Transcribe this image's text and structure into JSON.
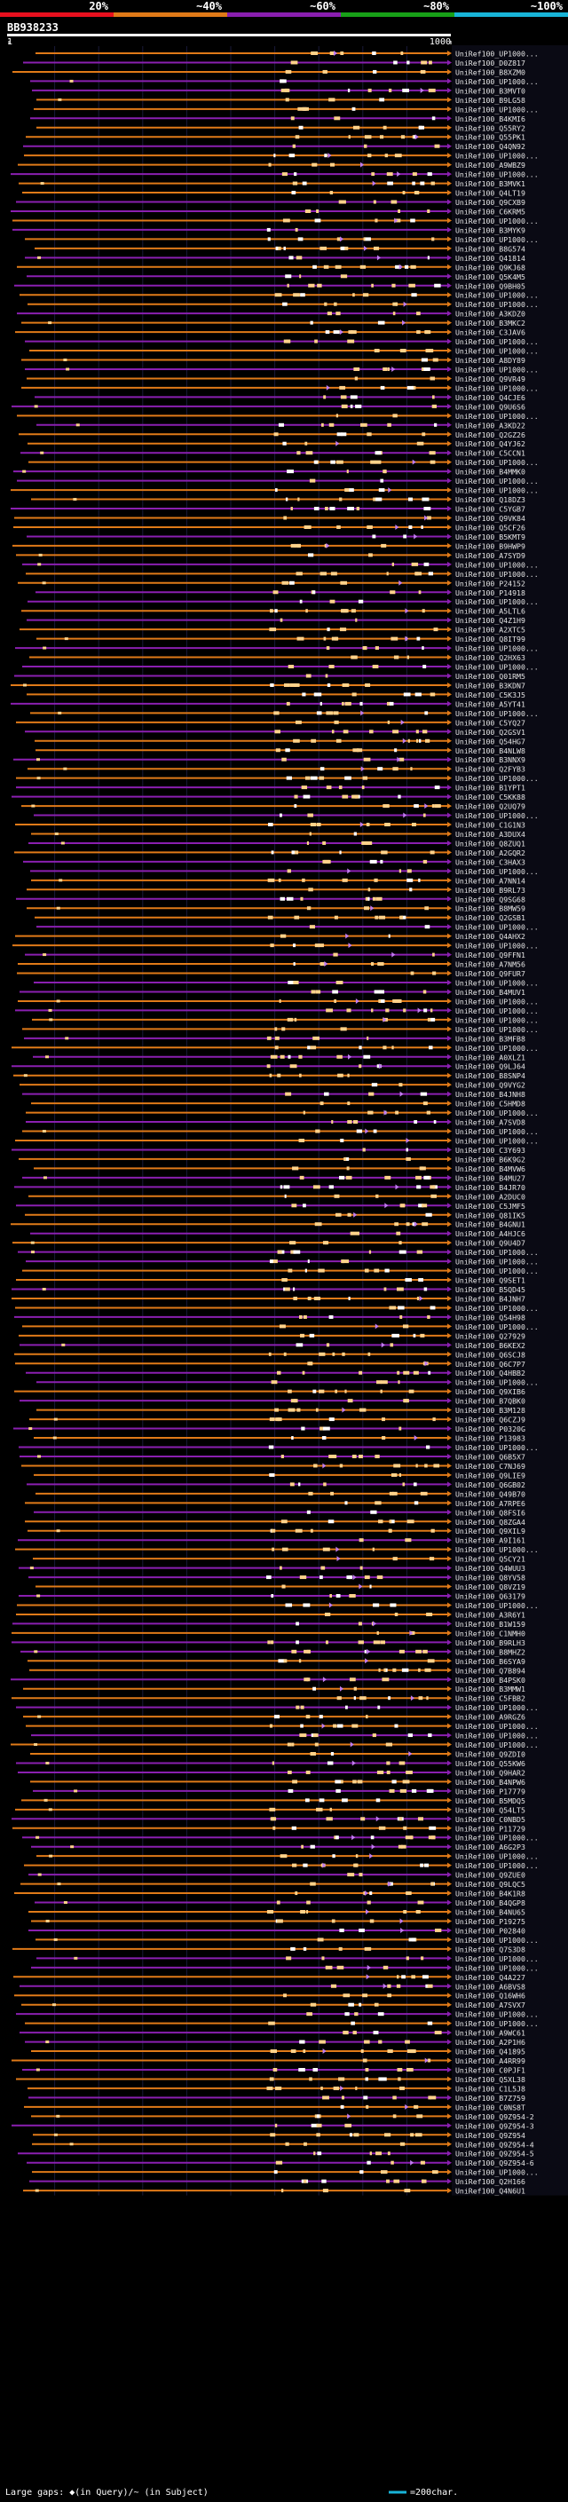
{
  "chart_data": {
    "type": "alignment-overview",
    "title": "BB938233",
    "query_length": 1000,
    "axis": {
      "start_label": "1",
      "end_label": "1000"
    },
    "legend": {
      "color_scale": [
        {
          "label": "20%",
          "color": "#e8101e"
        },
        {
          "label": "~40%",
          "color": "#e07a18"
        },
        {
          "label": "~60%",
          "color": "#8a1fb0"
        },
        {
          "label": "~80%",
          "color": "#18a018"
        },
        {
          "label": "~100%",
          "color": "#18b4d8"
        }
      ],
      "footer_gap_text": "Large gaps: ◆(in Query)/~ (in Subject)",
      "footer_scale_text": "=200char."
    },
    "hits": [
      "UniRef100_UP1000...",
      "UniRef100_D0Z817",
      "UniRef100_B8XZM0",
      "UniRef100_UP1000...",
      "UniRef100_B3MVT0",
      "UniRef100_B9LG58",
      "UniRef100_UP1000...",
      "UniRef100_B4KMI6",
      "UniRef100_Q55RY2",
      "UniRef100_Q55PK1",
      "UniRef100_Q4QN92",
      "UniRef100_UP1000...",
      "UniRef100_A9WBZ9",
      "UniRef100_UP1000...",
      "UniRef100_B3MVK1",
      "UniRef100_Q4LT19",
      "UniRef100_Q9CXB9",
      "UniRef100_C6KRM5",
      "UniRef100_UP1000...",
      "UniRef100_B3MYK9",
      "UniRef100_UP1000...",
      "UniRef100_B8G574",
      "UniRef100_Q41814",
      "UniRef100_Q9KJ68",
      "UniRef100_Q5K4M5",
      "UniRef100_Q9BH05",
      "UniRef100_UP1000...",
      "UniRef100_UP1000...",
      "UniRef100_A3KDZ0",
      "UniRef100_B3MKC2",
      "UniRef100_C3JAV6",
      "UniRef100_UP1000...",
      "UniRef100_UP1000...",
      "UniRef100_A8DY89",
      "UniRef100_UP1000...",
      "UniRef100_Q9VR49",
      "UniRef100_UP1000...",
      "UniRef100_Q4CJE6",
      "UniRef100_Q9U6S6",
      "UniRef100_UP1000...",
      "UniRef100_A3KD22",
      "UniRef100_Q2GZ26",
      "UniRef100_Q4YJ62",
      "UniRef100_C5CCN1",
      "UniRef100_UP1000...",
      "UniRef100_B4MMK0",
      "UniRef100_UP1000...",
      "UniRef100_UP1000...",
      "UniRef100_Q18DZ3",
      "UniRef100_C5YGB7",
      "UniRef100_Q9VK84",
      "UniRef100_Q5CF26",
      "UniRef100_B5KMT9",
      "UniRef100_B9HWP9",
      "UniRef100_A7SYD9",
      "UniRef100_UP1000...",
      "UniRef100_UP1000...",
      "UniRef100_P24152",
      "UniRef100_P14918",
      "UniRef100_UP1000...",
      "UniRef100_A5LTL6",
      "UniRef100_Q4Z1H9",
      "UniRef100_A2XTC5",
      "UniRef100_Q8IT99",
      "UniRef100_UP1000...",
      "UniRef100_Q2HX63",
      "UniRef100_UP1000...",
      "UniRef100_Q01RM5",
      "UniRef100_B3KDN7",
      "UniRef100_C5K3J5",
      "UniRef100_A5YT41",
      "UniRef100_UP1000...",
      "UniRef100_C5YQ27",
      "UniRef100_Q2GSV1",
      "UniRef100_Q54HG7",
      "UniRef100_B4NLW8",
      "UniRef100_B3NNX9",
      "UniRef100_Q2FYB3",
      "UniRef100_UP1000...",
      "UniRef100_B1YPT1",
      "UniRef100_C5KK88",
      "UniRef100_Q2UQ79",
      "UniRef100_UP1000...",
      "UniRef100_C1G1N3",
      "UniRef100_A3DUX4",
      "UniRef100_Q8ZUQ1",
      "UniRef100_A2GQR2",
      "UniRef100_C3HAX3",
      "UniRef100_UP1000...",
      "UniRef100_A7NN14",
      "UniRef100_B9RL73",
      "UniRef100_Q9SG68",
      "UniRef100_B8MW59",
      "UniRef100_Q2GSB1",
      "UniRef100_UP1000...",
      "UniRef100_Q4AHX2",
      "UniRef100_UP1000...",
      "UniRef100_Q9FFN1",
      "UniRef100_A7NM56",
      "UniRef100_Q9FUR7",
      "UniRef100_UP1000...",
      "UniRef100_B4MUV1",
      "UniRef100_UP1000...",
      "UniRef100_UP1000...",
      "UniRef100_UP1000...",
      "UniRef100_UP1000...",
      "UniRef100_B3MFB8",
      "UniRef100_UP1000...",
      "UniRef100_A0XLZ1",
      "UniRef100_Q9LJ64",
      "UniRef100_B8SNP4",
      "UniRef100_Q9VYG2",
      "UniRef100_B4JNH8",
      "UniRef100_C5HMD8",
      "UniRef100_UP1000...",
      "UniRef100_A7SVD8",
      "UniRef100_UP1000...",
      "UniRef100_UP1000...",
      "UniRef100_C3Y693",
      "UniRef100_B6K9G2",
      "UniRef100_B4MVW6",
      "UniRef100_B4MU27",
      "UniRef100_B4JR70",
      "UniRef100_A2DUC0",
      "UniRef100_C5JMF5",
      "UniRef100_Q81IK5",
      "UniRef100_B4GNU1",
      "UniRef100_A4HJC6",
      "UniRef100_Q9U4D7",
      "UniRef100_UP1000...",
      "UniRef100_UP1000...",
      "UniRef100_UP1000...",
      "UniRef100_Q9SET1",
      "UniRef100_B5QD45",
      "UniRef100_B4JNH7",
      "UniRef100_UP1000...",
      "UniRef100_Q54H98",
      "UniRef100_UP1000...",
      "UniRef100_Q27929",
      "UniRef100_B6KEX2",
      "UniRef100_Q6SCJ8",
      "UniRef100_Q6C7P7",
      "UniRef100_Q4HBB2",
      "UniRef100_UP1000...",
      "UniRef100_Q9XIB6",
      "UniRef100_B7QBK0",
      "UniRef100_B3M128",
      "UniRef100_Q6CZJ9",
      "UniRef100_P0320G",
      "UniRef100_P13983",
      "UniRef100_UP1000...",
      "UniRef100_Q6B5X7",
      "UniRef100_C7NJ69",
      "UniRef100_Q9LIE9",
      "UniRef100_Q6GB02",
      "UniRef100_Q49B70",
      "UniRef100_A7RPE6",
      "UniRef100_Q8FSI6",
      "UniRef100_Q8ZGA4",
      "UniRef100_Q9XIL9",
      "UniRef100_A9I161",
      "UniRef100_UP1000...",
      "UniRef100_Q5CY21",
      "UniRef100_Q4WUU3",
      "UniRef100_Q8YV58",
      "UniRef100_Q8VZ19",
      "UniRef100_Q63179",
      "UniRef100_UP1000...",
      "UniRef100_A3R6Y1",
      "UniRef100_B1W159",
      "UniRef100_C1NMH0",
      "UniRef100_B9RLH3",
      "UniRef100_B8MHZ2",
      "UniRef100_B6SYA9",
      "UniRef100_Q7B894",
      "UniRef100_B4PSK0",
      "UniRef100_B3MMW1",
      "UniRef100_C5FBB2",
      "UniRef100_UP1000...",
      "UniRef100_A9RGZ6",
      "UniRef100_UP1000...",
      "UniRef100_UP1000...",
      "UniRef100_UP1000...",
      "UniRef100_Q9ZDI0",
      "UniRef100_Q55KW6",
      "UniRef100_Q9HAR2",
      "UniRef100_B4NPW6",
      "UniRef100_P17779",
      "UniRef100_B5MDQ5",
      "UniRef100_Q54LT5",
      "UniRef100_C0NBD5",
      "UniRef100_P11729",
      "UniRef100_UP1000...",
      "UniRef100_A6G2P3",
      "UniRef100_UP1000...",
      "UniRef100_UP1000...",
      "UniRef100_Q9ZUE0",
      "UniRef100_Q9LQC5",
      "UniRef100_B4K1R8",
      "UniRef100_B4QGP8",
      "UniRef100_B4NU65",
      "UniRef100_P19275",
      "UniRef100_P02840",
      "UniRef100_UP1000...",
      "UniRef100_Q7S3D8",
      "UniRef100_UP1000...",
      "UniRef100_UP1000...",
      "UniRef100_Q4A227",
      "UniRef100_A6BVS8",
      "UniRef100_Q16WH6",
      "UniRef100_A7SVX7",
      "UniRef100_UP1000...",
      "UniRef100_UP1000...",
      "UniRef100_A9WC61",
      "UniRef100_A2P1H6",
      "UniRef100_Q41895",
      "UniRef100_A4RR99",
      "UniRef100_C0PJF1",
      "UniRef100_Q5XL38",
      "UniRef100_C1L5J8",
      "UniRef100_B7Z759",
      "UniRef100_C0NS8T",
      "UniRef100_Q9Z954-2",
      "UniRef100_Q9Z954-3",
      "UniRef100_Q9Z954",
      "UniRef100_Q9Z954-4",
      "UniRef100_Q9Z954-5",
      "UniRef100_Q9Z954-6",
      "UniRef100_UP1000...",
      "UniRef100_Q2H166",
      "UniRef100_Q4N6U1"
    ]
  }
}
